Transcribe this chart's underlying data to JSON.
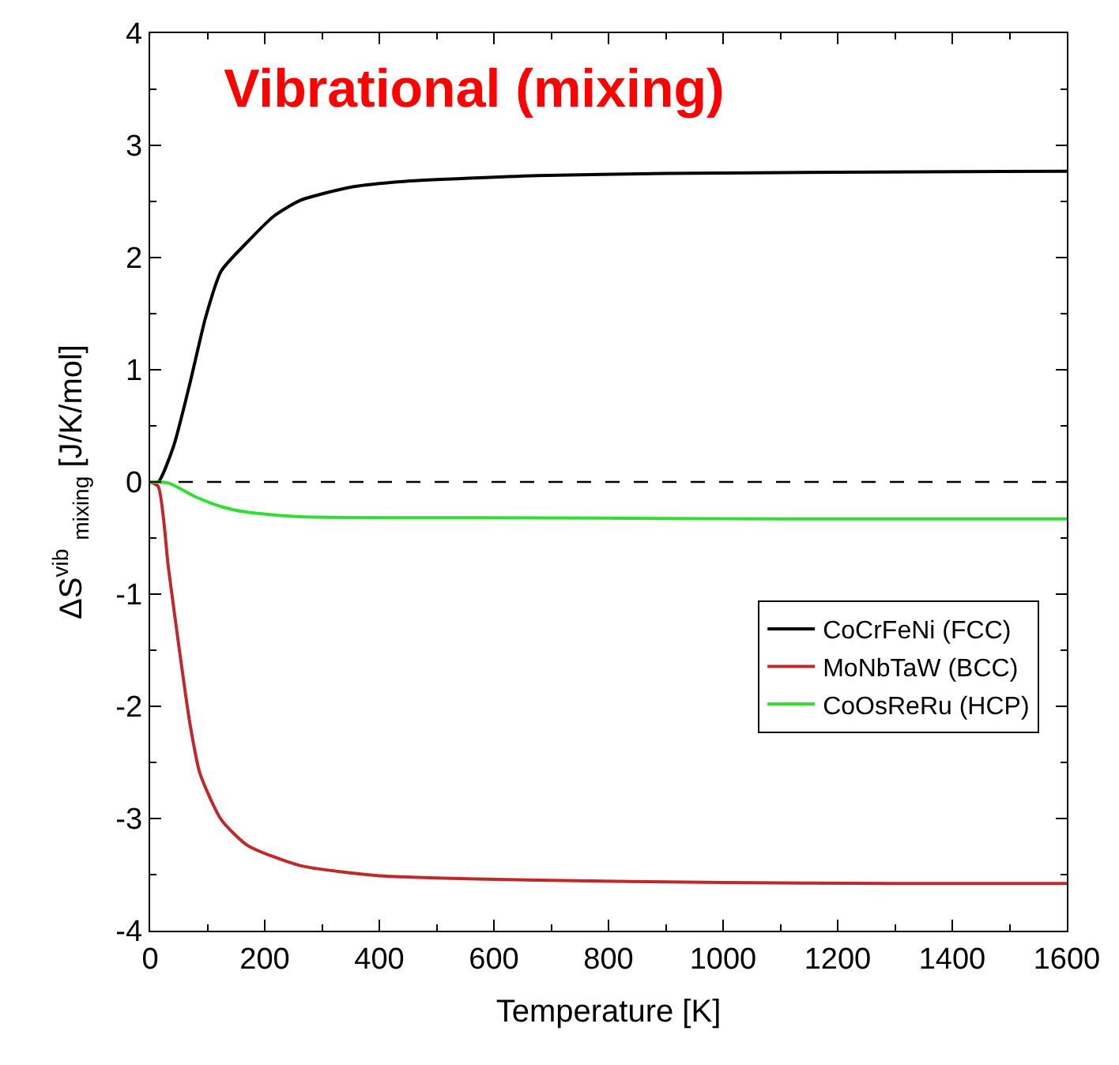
{
  "chart_data": {
    "type": "line",
    "title": "Vibrational (mixing)",
    "xlabel": "Temperature [K]",
    "ylabel": "ΔS$^{vib}$ $_{mixing}$ [J/K/mol]",
    "xlim": [
      0,
      1600
    ],
    "xticks": [
      0,
      200,
      400,
      600,
      800,
      1000,
      1200,
      1400,
      1600
    ],
    "ylim": [
      -4,
      4
    ],
    "yticks": [
      -4,
      -3,
      -2,
      -1,
      0,
      1,
      2,
      3,
      4
    ],
    "grid": false,
    "legend": "bottom right",
    "marker": "none",
    "line_style": "solid",
    "ref_lines": [
      {
        "axis": "y",
        "value": 0,
        "color": "#000000",
        "line_style": "dashed"
      }
    ],
    "series": [
      {
        "name": "CoCrFeNi (FCC)",
        "color": "#000000",
        "x": [
          0,
          14,
          41,
          69,
          97,
          124,
          170,
          216,
          262,
          353,
          446,
          676,
          900,
          1200,
          1600
        ],
        "values": [
          0,
          0,
          0.32,
          0.87,
          1.47,
          1.88,
          2.14,
          2.37,
          2.51,
          2.63,
          2.68,
          2.73,
          2.75,
          2.76,
          2.77
        ]
      },
      {
        "name": "MoNbTaW (BCC)",
        "color": "#c0292b",
        "x": [
          0,
          14,
          32,
          50,
          69,
          87,
          124,
          170,
          262,
          400,
          676,
          1000,
          1300,
          1600
        ],
        "values": [
          0,
          -0.04,
          -0.77,
          -1.46,
          -2.14,
          -2.6,
          -3.01,
          -3.24,
          -3.42,
          -3.51,
          -3.55,
          -3.57,
          -3.58,
          -3.58
        ]
      },
      {
        "name": "CoOsReRu (HCP)",
        "color": "#33dd33",
        "x": [
          0,
          32,
          78,
          124,
          170,
          262,
          676,
          1100,
          1600
        ],
        "values": [
          0,
          -0.01,
          -0.13,
          -0.22,
          -0.27,
          -0.31,
          -0.32,
          -0.33,
          -0.33
        ]
      }
    ]
  }
}
